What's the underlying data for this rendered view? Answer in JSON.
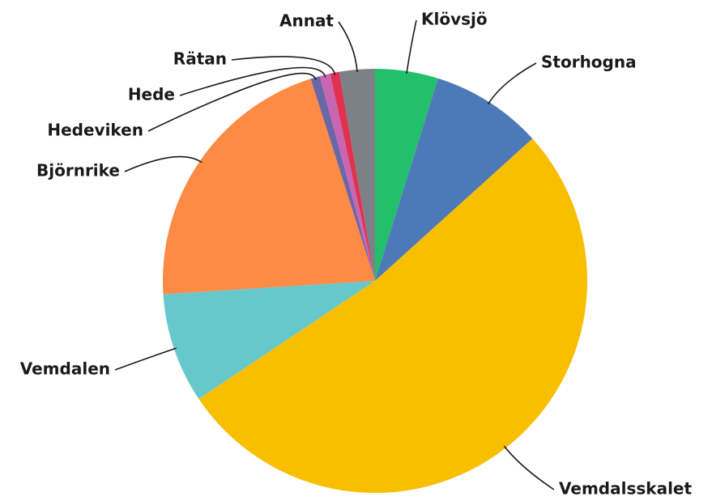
{
  "chart_data": {
    "type": "pie",
    "categories": [
      "Klövsjö",
      "Storhogna",
      "Vemdalsskalet",
      "Vemdalen",
      "Björnrike",
      "Hedeviken",
      "Hede",
      "Rätan",
      "Annat"
    ],
    "values": [
      4.8,
      8.5,
      52.3,
      8.4,
      21.1,
      0.7,
      0.8,
      0.7,
      2.7
    ],
    "colors": [
      "#22c06b",
      "#4e79b8",
      "#f8bf00",
      "#67c8cc",
      "#fd8a45",
      "#6a67a8",
      "#c966b4",
      "#e0324f",
      "#7b8187"
    ]
  }
}
